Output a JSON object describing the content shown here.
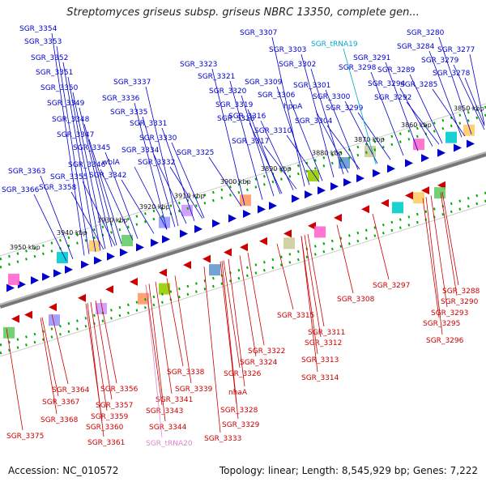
{
  "title": "Streptomyces griseus subsp. griseus NBRC 13350, complete gen...",
  "footer": {
    "accession": "Accession: NC_010572",
    "summary": "Topology: linear; Length: 8,545,929 bp; Genes: 7,222"
  },
  "colors": {
    "forward": "#0000cc",
    "reverse": "#cc0000",
    "trna": "#00aacc",
    "trna_reverse": "#dd88cc",
    "backbone": "#888888",
    "tick": "#00aa00"
  },
  "kbp_ticks": [
    "3850 kbp",
    "3860 kbp",
    "3870 kbp",
    "3880 kbp",
    "3890 kbp",
    "3900 kbp",
    "3910 kbp",
    "3920 kbp",
    "3930 kbp",
    "3940 kbp",
    "3950 kbp"
  ],
  "forward_labels": [
    "SGR_3354",
    "SGR_3353",
    "SGR_3352",
    "SGR_3351",
    "SGR_3350",
    "SGR_3349",
    "SGR_3348",
    "SGR_3347",
    "SGR_3345",
    "SGR_3346",
    "SGR_3355",
    "SGR_3358",
    "SGR_3363",
    "SGR_3366",
    "SGR_3342",
    "SGR_3337",
    "SGR_3336",
    "SGR_3335",
    "SGR_3331",
    "SGR_3330",
    "SGR_3334",
    "wblA",
    "SGR_3332",
    "SGR_3323",
    "SGR_3321",
    "SGR_3320",
    "SGR_3319",
    "SGR_3318",
    "SGR_3316",
    "SGR_3317",
    "SGR_3325",
    "SGR_3307",
    "SGR_3309",
    "SGR_3306",
    "SGR_3310",
    "SGR_3303",
    "SGR_3302",
    "SGR_3301",
    "hppA",
    "SGR_3304",
    "SGR_3300",
    "SGR_3299",
    "SGR_3298",
    "SGR_tRNA19",
    "SGR_3291",
    "SGR_3294",
    "SGR_3292",
    "SGR_3289",
    "SGR_3284",
    "SGR_3280",
    "SGR_3277",
    "SGR_3279",
    "SGR_3285",
    "SGR_3278"
  ],
  "reverse_labels": [
    "SGR_3375",
    "SGR_3367",
    "SGR_3364",
    "SGR_3368",
    "SGR_3359",
    "SGR_3360",
    "SGR_3357",
    "SGR_3356",
    "SGR_3361",
    "SGR_3343",
    "SGR_3341",
    "SGR_3344",
    "SGR_tRNA20",
    "SGR_3339",
    "SGR_3338",
    "SGR_3333",
    "SGR_3329",
    "SGR_3328",
    "SGR_3326",
    "nhaA",
    "SGR_3324",
    "SGR_3322",
    "SGR_3315",
    "SGR_3311",
    "SGR_3312",
    "SGR_3313",
    "SGR_3314",
    "SGR_3308",
    "SGR_3297",
    "SGR_3288",
    "SGR_3290",
    "SGR_3293",
    "SGR_3295",
    "SGR_3296"
  ]
}
